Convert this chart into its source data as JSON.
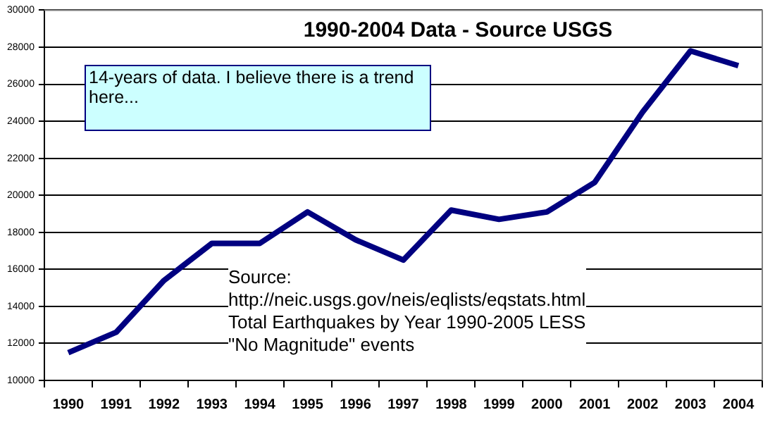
{
  "chart_data": {
    "type": "line",
    "title": "1990-2004 Data - Source USGS",
    "categories": [
      "1990",
      "1991",
      "1992",
      "1993",
      "1994",
      "1995",
      "1996",
      "1997",
      "1998",
      "1999",
      "2000",
      "2001",
      "2002",
      "2003",
      "2004"
    ],
    "series": [
      {
        "color": "#000080",
        "values": [
          11500,
          12600,
          15400,
          17400,
          17400,
          19100,
          17600,
          16500,
          19200,
          18700,
          19100,
          20700,
          24500,
          27800,
          27000
        ]
      }
    ],
    "ylim": [
      10000,
      30000
    ],
    "yticks": [
      10000,
      12000,
      14000,
      16000,
      18000,
      20000,
      22000,
      24000,
      26000,
      28000,
      30000
    ],
    "grid": "y",
    "legend": false,
    "marker": "none",
    "line_style": "solid",
    "annotations": [
      "14-years of data.  I believe there is a trend here...",
      "Source:\nhttp://neic.usgs.gov/neis/eqlists/eqstats.html\nTotal Earthquakes by Year 1990-2005 LESS\n\"No Magnitude\" events"
    ]
  }
}
